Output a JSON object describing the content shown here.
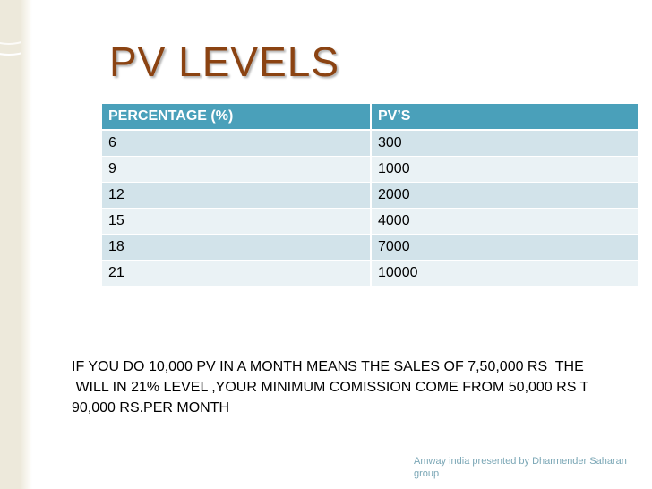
{
  "slide": {
    "title": "PV LEVELS",
    "table": {
      "headers": [
        "PERCENTAGE (%)",
        "PV’S"
      ],
      "rows": [
        [
          "6",
          "300"
        ],
        [
          "9",
          "1000"
        ],
        [
          "12",
          "2000"
        ],
        [
          "15",
          "4000"
        ],
        [
          "18",
          "7000"
        ],
        [
          "21",
          "10000"
        ]
      ]
    },
    "body_lines": [
      "IF YOU DO 10,000 PV IN A MONTH MEANS THE SALES OF 7,50,000 RS  THE",
      " WILL IN 21% LEVEL ,YOUR MINIMUM COMISSION COME FROM 50,000 RS T",
      "90,000 RS.PER MONTH"
    ],
    "footer": "Amway india presented by Dharmender Saharan group"
  },
  "colors": {
    "title": "#8b4312",
    "table_header": "#4aa0ba",
    "row_odd": "#d2e3ea",
    "row_even": "#eaf2f5",
    "footer": "#7ba7b6",
    "side_band": "#ede9db"
  }
}
